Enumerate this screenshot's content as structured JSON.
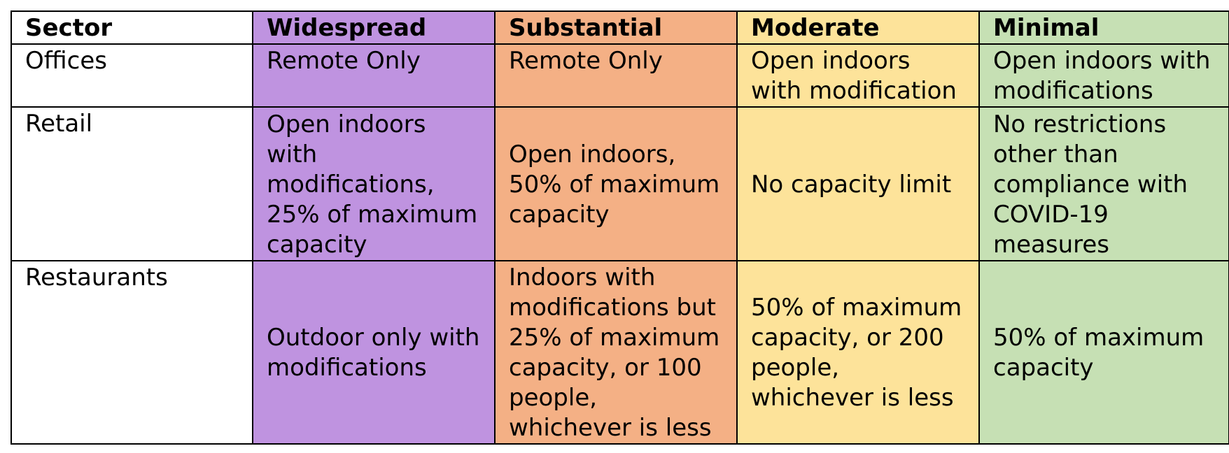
{
  "colors": {
    "sector": "#ffffff",
    "widespread": "#bf93e0",
    "substantial": "#f4b085",
    "moderate": "#fde39a",
    "minimal": "#c6e0b4",
    "border": "#000000"
  },
  "headers": {
    "sector": "Sector",
    "widespread": "Widespread",
    "substantial": "Substantial",
    "moderate": "Moderate",
    "minimal": "Minimal"
  },
  "rows": [
    {
      "sector": "Offices",
      "widespread": "Remote Only",
      "substantial": "Remote Only",
      "moderate": "Open indoors with modification",
      "minimal": "Open indoors with modifications"
    },
    {
      "sector": "Retail",
      "widespread": "Open indoors with modifications, 25% of maximum capacity",
      "substantial": "Open indoors, 50% of maximum capacity",
      "moderate": "No capacity limit",
      "minimal": "No restrictions other than compliance with COVID-19 measures"
    },
    {
      "sector": "Restaurants",
      "widespread": "Outdoor only with modifications",
      "substantial": "Indoors with modifications but 25% of maximum capacity, or 100 people, whichever is less",
      "moderate": "50% of maximum capacity, or 200 people, whichever is less",
      "minimal": "50% of maximum capacity"
    }
  ]
}
